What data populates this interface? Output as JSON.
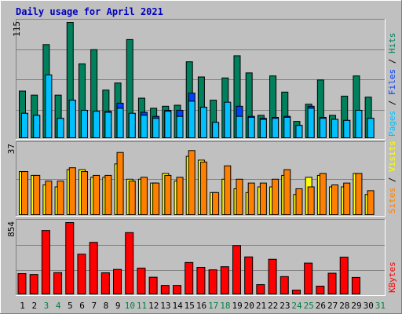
{
  "title": "Daily usage for April 2021",
  "colors": {
    "background": "#c0c0c0",
    "panel_bg": "#c0c0c0",
    "grid": "#808080",
    "title": "#0000c0",
    "hits": "#00805c",
    "files": "#0040ff",
    "pages": "#00c0ff",
    "visits": "#ffff00",
    "sites": "#ff8000",
    "kbytes": "#ff0000",
    "weekday_label": "#000000",
    "weekend_label": "#008040"
  },
  "chart_data": [
    {
      "type": "bar",
      "panel": "hits-files-pages",
      "y_max_label": "115",
      "ylim": [
        0,
        115
      ],
      "right_labels": [
        {
          "text": "Pages",
          "color": "#00c0ff"
        },
        {
          "text": " / ",
          "color": "#000000"
        },
        {
          "text": "Files",
          "color": "#0040ff"
        },
        {
          "text": " / ",
          "color": "#000000"
        },
        {
          "text": "Hits",
          "color": "#00805c"
        }
      ],
      "categories": [
        "1",
        "2",
        "3",
        "4",
        "5",
        "6",
        "7",
        "8",
        "9",
        "10",
        "11",
        "12",
        "13",
        "14",
        "15",
        "16",
        "17",
        "18",
        "19",
        "20",
        "21",
        "22",
        "23",
        "24",
        "25",
        "26",
        "27",
        "28",
        "29",
        "30",
        "31"
      ],
      "series": [
        {
          "name": "Hits",
          "values": [
            47,
            43,
            93,
            43,
            115,
            74,
            88,
            48,
            55,
            98,
            40,
            30,
            32,
            33,
            76,
            61,
            38,
            60,
            82,
            65,
            23,
            62,
            46,
            17,
            34,
            58,
            23,
            42,
            62,
            41,
            0
          ]
        },
        {
          "name": "Files",
          "values": [
            25,
            23,
            43,
            20,
            38,
            28,
            27,
            27,
            35,
            25,
            26,
            22,
            28,
            28,
            45,
            31,
            16,
            33,
            32,
            22,
            20,
            21,
            22,
            13,
            32,
            21,
            19,
            18,
            28,
            20,
            0
          ]
        },
        {
          "name": "Pages",
          "values": [
            25,
            23,
            63,
            20,
            38,
            28,
            27,
            26,
            30,
            25,
            23,
            20,
            27,
            22,
            37,
            31,
            16,
            36,
            22,
            21,
            19,
            20,
            21,
            13,
            30,
            20,
            19,
            18,
            28,
            20,
            0
          ]
        }
      ]
    },
    {
      "type": "bar",
      "panel": "visits-sites",
      "y_max_label": "37",
      "ylim": [
        0,
        37
      ],
      "right_labels": [
        {
          "text": "Sites",
          "color": "#ff8000"
        },
        {
          "text": " / ",
          "color": "#000000"
        },
        {
          "text": "Visits",
          "color": "#ffff00"
        }
      ],
      "categories": [
        "1",
        "2",
        "3",
        "4",
        "5",
        "6",
        "7",
        "8",
        "9",
        "10",
        "11",
        "12",
        "13",
        "14",
        "15",
        "16",
        "17",
        "18",
        "19",
        "20",
        "21",
        "22",
        "23",
        "24",
        "25",
        "26",
        "27",
        "28",
        "29",
        "30",
        "31"
      ],
      "series": [
        {
          "name": "Visits",
          "values": [
            23,
            21,
            16,
            15,
            24,
            24,
            20,
            20,
            27,
            19,
            19,
            17,
            22,
            18,
            31,
            29,
            12,
            19,
            14,
            12,
            15,
            15,
            21,
            11,
            20,
            21,
            15,
            15,
            22,
            11,
            0
          ]
        },
        {
          "name": "Sites",
          "values": [
            23,
            21,
            18,
            18,
            25,
            23,
            21,
            21,
            33,
            18,
            20,
            17,
            21,
            20,
            34,
            28,
            12,
            26,
            19,
            17,
            17,
            19,
            24,
            14,
            15,
            22,
            16,
            17,
            22,
            13,
            0
          ]
        }
      ]
    },
    {
      "type": "bar",
      "panel": "kbytes",
      "y_max_label": "854",
      "ylim": [
        0,
        854
      ],
      "right_labels": [
        {
          "text": "KBytes",
          "color": "#ff0000"
        }
      ],
      "categories": [
        "1",
        "2",
        "3",
        "4",
        "5",
        "6",
        "7",
        "8",
        "9",
        "10",
        "11",
        "12",
        "13",
        "14",
        "15",
        "16",
        "17",
        "18",
        "19",
        "20",
        "21",
        "22",
        "23",
        "24",
        "25",
        "26",
        "27",
        "28",
        "29",
        "30",
        "31"
      ],
      "series": [
        {
          "name": "KBytes",
          "values": [
            250,
            240,
            760,
            262,
            854,
            480,
            620,
            260,
            300,
            735,
            315,
            208,
            110,
            110,
            382,
            325,
            295,
            332,
            582,
            448,
            120,
            420,
            215,
            55,
            375,
            102,
            255,
            445,
            205,
            0,
            0
          ]
        }
      ]
    }
  ],
  "x_labels": [
    {
      "text": "1",
      "weekend": false
    },
    {
      "text": "2",
      "weekend": false
    },
    {
      "text": "3",
      "weekend": true
    },
    {
      "text": "4",
      "weekend": true
    },
    {
      "text": "5",
      "weekend": false
    },
    {
      "text": "6",
      "weekend": false
    },
    {
      "text": "7",
      "weekend": false
    },
    {
      "text": "8",
      "weekend": false
    },
    {
      "text": "9",
      "weekend": false
    },
    {
      "text": "10",
      "weekend": true
    },
    {
      "text": "11",
      "weekend": true
    },
    {
      "text": "12",
      "weekend": false
    },
    {
      "text": "13",
      "weekend": false
    },
    {
      "text": "14",
      "weekend": false
    },
    {
      "text": "15",
      "weekend": false
    },
    {
      "text": "16",
      "weekend": false
    },
    {
      "text": "17",
      "weekend": true
    },
    {
      "text": "18",
      "weekend": true
    },
    {
      "text": "19",
      "weekend": false
    },
    {
      "text": "20",
      "weekend": false
    },
    {
      "text": "21",
      "weekend": false
    },
    {
      "text": "22",
      "weekend": false
    },
    {
      "text": "23",
      "weekend": false
    },
    {
      "text": "24",
      "weekend": true
    },
    {
      "text": "25",
      "weekend": true
    },
    {
      "text": "26",
      "weekend": false
    },
    {
      "text": "27",
      "weekend": false
    },
    {
      "text": "28",
      "weekend": false
    },
    {
      "text": "29",
      "weekend": false
    },
    {
      "text": "30",
      "weekend": false
    },
    {
      "text": "31",
      "weekend": true
    }
  ]
}
